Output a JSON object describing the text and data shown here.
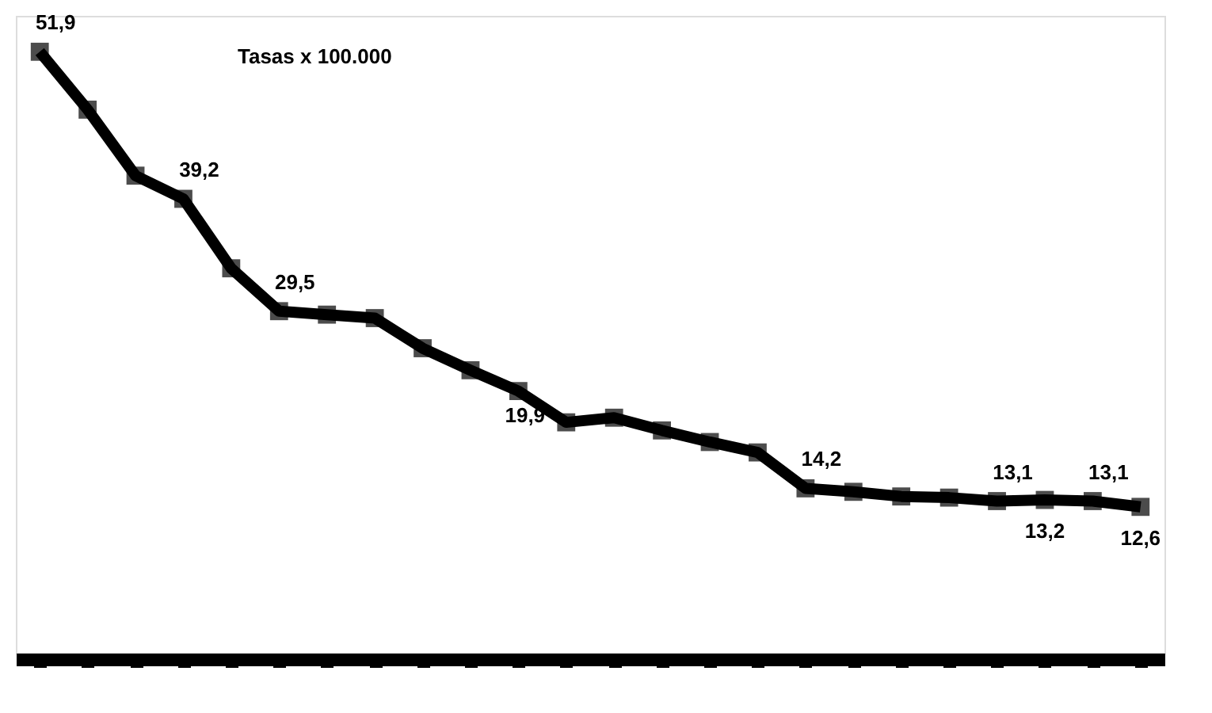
{
  "chart_data": {
    "type": "line",
    "annotations": [
      "Tasas x 100.000"
    ],
    "categories": [
      null,
      null,
      null,
      null,
      null,
      null,
      null,
      null,
      null,
      null,
      null,
      null,
      null,
      null,
      null,
      null,
      null,
      null,
      null,
      null,
      null,
      null,
      null,
      null
    ],
    "series": [
      {
        "color": "#000000",
        "values": [
          51.9,
          46.9,
          41.2,
          39.2,
          33.2,
          29.5,
          29.2,
          28.9,
          26.3,
          24.4,
          22.6,
          19.9,
          20.3,
          19.2,
          18.2,
          17.3,
          14.2,
          13.9,
          13.5,
          13.4,
          13.1,
          13.2,
          13.1,
          12.6
        ],
        "value_labels": [
          "51,9",
          null,
          null,
          "39,2",
          null,
          "29,5",
          null,
          null,
          null,
          null,
          null,
          "19,9",
          null,
          null,
          null,
          null,
          "14,2",
          null,
          null,
          null,
          "13,1",
          "13,2",
          "13,1",
          "12,6"
        ]
      }
    ],
    "ylim": [
      0,
      55
    ],
    "tick_labels": false,
    "marker": "square",
    "line_style": "solid",
    "grid": false
  }
}
